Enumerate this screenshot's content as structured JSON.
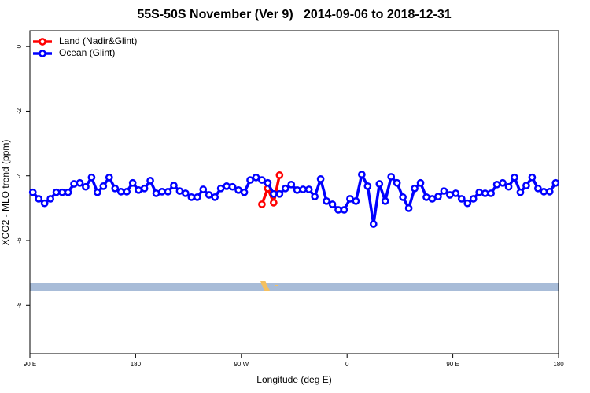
{
  "chart_data": {
    "type": "line",
    "title": "55S-50S November (Ver 9)   2014-09-06 to 2018-12-31",
    "xlabel": "Longitude (deg E)",
    "ylabel": "XCO2 - MLO trend (ppm)",
    "xlim": [
      90,
      540
    ],
    "ylim": [
      -9.5,
      0.49
    ],
    "xticks": [
      {
        "value": 90,
        "label": "90 E"
      },
      {
        "value": 180,
        "label": "180"
      },
      {
        "value": 270,
        "label": "90 W"
      },
      {
        "value": 360,
        "label": "0"
      },
      {
        "value": 450,
        "label": "90 E"
      },
      {
        "value": 540,
        "label": "180"
      }
    ],
    "yticks": [
      0,
      -2,
      -4,
      -6,
      -8
    ],
    "legend": "top-left",
    "series": [
      {
        "name": "Land (Nadir&Glint)",
        "color": "#ff0000",
        "x": [
          287.5,
          292.5,
          297.5,
          302.5
        ],
        "values": [
          -4.88,
          -4.39,
          -4.83,
          -3.98
        ]
      },
      {
        "name": "Ocean (Glint)",
        "color": "#0000ff",
        "x": [
          92.5,
          97.5,
          102.5,
          107.5,
          112.5,
          117.5,
          122.5,
          127.5,
          132.5,
          137.5,
          142.5,
          147.5,
          152.5,
          157.5,
          162.5,
          167.5,
          172.5,
          177.5,
          182.5,
          187.5,
          192.5,
          197.5,
          202.5,
          207.5,
          212.5,
          217.5,
          222.5,
          227.5,
          232.5,
          237.5,
          242.5,
          247.5,
          252.5,
          257.5,
          262.5,
          267.5,
          272.5,
          277.5,
          282.5,
          287.5,
          292.5,
          297.5,
          302.5,
          307.5,
          312.5,
          317.5,
          322.5,
          327.5,
          332.5,
          337.5,
          342.5,
          347.5,
          352.5,
          357.5,
          362.5,
          367.5,
          372.5,
          377.5,
          382.5,
          387.5,
          392.5,
          397.5,
          402.5,
          407.5,
          412.5,
          417.5,
          422.5,
          427.5,
          432.5,
          437.5,
          442.5,
          447.5,
          452.5,
          457.5,
          462.5,
          467.5,
          472.5,
          477.5,
          482.5,
          487.5,
          492.5,
          497.5,
          502.5,
          507.5,
          512.5,
          517.5,
          522.5,
          527.5,
          532.5,
          537.5
        ],
        "values": [
          -4.51,
          -4.71,
          -4.85,
          -4.71,
          -4.51,
          -4.51,
          -4.51,
          -4.25,
          -4.22,
          -4.34,
          -4.05,
          -4.51,
          -4.32,
          -4.05,
          -4.39,
          -4.49,
          -4.49,
          -4.22,
          -4.44,
          -4.39,
          -4.15,
          -4.54,
          -4.49,
          -4.49,
          -4.3,
          -4.47,
          -4.54,
          -4.66,
          -4.66,
          -4.42,
          -4.59,
          -4.66,
          -4.39,
          -4.32,
          -4.34,
          -4.44,
          -4.51,
          -4.13,
          -4.05,
          -4.13,
          -4.22,
          -4.56,
          -4.56,
          -4.39,
          -4.27,
          -4.44,
          -4.42,
          -4.42,
          -4.64,
          -4.1,
          -4.78,
          -4.88,
          -5.05,
          -5.05,
          -4.71,
          -4.78,
          -3.96,
          -4.32,
          -5.49,
          -4.25,
          -4.78,
          -4.03,
          -4.22,
          -4.66,
          -5.0,
          -4.39,
          -4.22,
          -4.66,
          -4.71,
          -4.64,
          -4.47,
          -4.59,
          -4.54,
          -4.71,
          -4.85,
          -4.71,
          -4.51,
          -4.54,
          -4.54,
          -4.27,
          -4.22,
          -4.34,
          -4.05,
          -4.51,
          -4.3,
          -4.05,
          -4.39,
          -4.49,
          -4.49,
          -4.22
        ]
      }
    ]
  }
}
